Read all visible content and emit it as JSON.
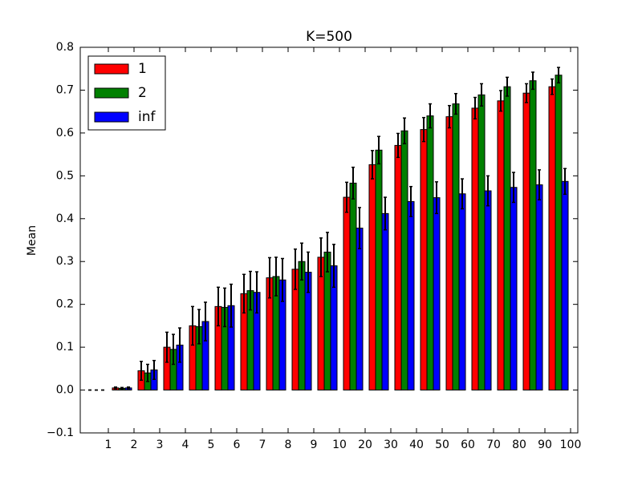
{
  "chart_data": {
    "type": "bar",
    "title": "K=500",
    "y_label": "Mean",
    "categories": [
      "1",
      "2",
      "3",
      "4",
      "5",
      "6",
      "7",
      "8",
      "9",
      "10",
      "20",
      "30",
      "40",
      "50",
      "60",
      "70",
      "80",
      "90",
      "100"
    ],
    "series": [
      {
        "name": "1",
        "color": "#ff0000",
        "values": [
          0,
          0.005,
          0.045,
          0.1,
          0.15,
          0.195,
          0.225,
          0.262,
          0.282,
          0.31,
          0.45,
          0.526,
          0.571,
          0.608,
          0.638,
          0.658,
          0.675,
          0.693,
          0.708
        ],
        "errors": [
          0,
          0.002,
          0.022,
          0.035,
          0.045,
          0.045,
          0.045,
          0.047,
          0.047,
          0.045,
          0.035,
          0.033,
          0.028,
          0.028,
          0.026,
          0.025,
          0.024,
          0.022,
          0.018
        ]
      },
      {
        "name": "2",
        "color": "#008000",
        "values": [
          0,
          0.004,
          0.04,
          0.095,
          0.148,
          0.193,
          0.232,
          0.265,
          0.3,
          0.322,
          0.483,
          0.56,
          0.605,
          0.64,
          0.668,
          0.689,
          0.708,
          0.722,
          0.735
        ],
        "errors": [
          0,
          0.002,
          0.02,
          0.035,
          0.04,
          0.045,
          0.045,
          0.045,
          0.043,
          0.046,
          0.037,
          0.032,
          0.03,
          0.028,
          0.024,
          0.026,
          0.022,
          0.02,
          0.018
        ]
      },
      {
        "name": "inf",
        "color": "#0000ff",
        "values": [
          0,
          0.005,
          0.047,
          0.105,
          0.16,
          0.197,
          0.228,
          0.257,
          0.275,
          0.29,
          0.378,
          0.412,
          0.44,
          0.449,
          0.458,
          0.465,
          0.473,
          0.479,
          0.487
        ],
        "errors": [
          0,
          0.002,
          0.022,
          0.04,
          0.045,
          0.05,
          0.048,
          0.05,
          0.047,
          0.05,
          0.048,
          0.038,
          0.035,
          0.037,
          0.035,
          0.035,
          0.035,
          0.035,
          0.03
        ]
      }
    ],
    "ylim": [
      -0.1,
      0.8
    ],
    "yticks": [
      {
        "value": -0.1,
        "label": "−0.1"
      },
      {
        "value": 0,
        "label": "0.0"
      },
      0.1,
      0.2,
      0.3,
      0.4,
      0.5,
      0.6,
      0.7,
      0.8
    ],
    "legend": "upper left"
  }
}
